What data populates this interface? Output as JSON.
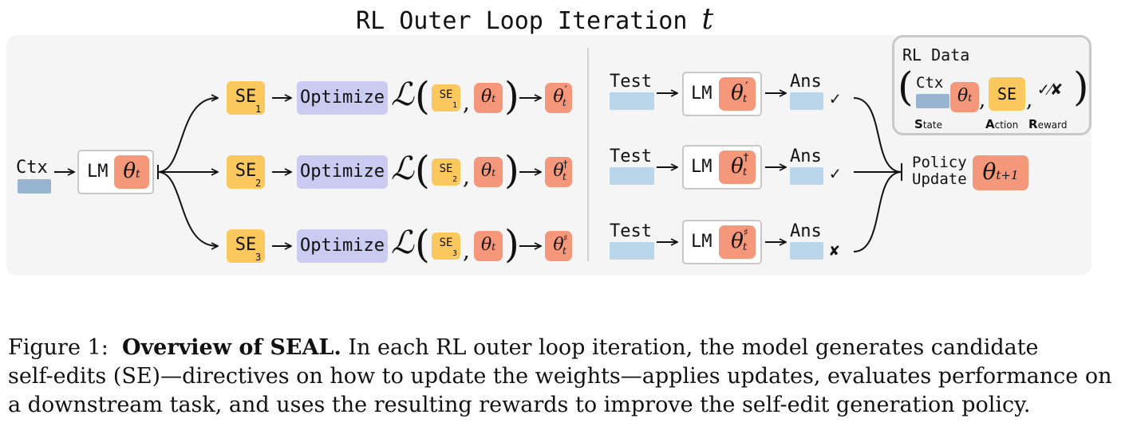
{
  "title": {
    "text": "RL Outer Loop Iteration",
    "var": "t"
  },
  "context": {
    "label": "Ctx"
  },
  "model": {
    "label": "LM",
    "param": "θ",
    "param_sub": "t"
  },
  "branches": [
    {
      "se_label": "SE",
      "se_sub": "1",
      "optimize": "Optimize",
      "theta_mark": "′",
      "result": "✓"
    },
    {
      "se_label": "SE",
      "se_sub": "2",
      "optimize": "Optimize",
      "theta_mark": "†",
      "result": "✓"
    },
    {
      "se_label": "SE",
      "se_sub": "3",
      "optimize": "Optimize",
      "theta_mark": "♯",
      "result": "✘"
    }
  ],
  "loss_symbol": "ℒ",
  "eval": {
    "test_label": "Test",
    "ans_label": "Ans"
  },
  "policy": {
    "line1": "Policy",
    "line2": "Update",
    "theta_sub": "t+1"
  },
  "rl_data": {
    "title": "RL Data",
    "ctx": "Ctx",
    "se": "SE",
    "reward": "✓⁄✘",
    "state_cap": "S",
    "state_rest": "tate",
    "action_cap": "A",
    "action_rest": "ction",
    "reward_cap": "R",
    "reward_rest": "eward"
  },
  "caption": {
    "prefix": "Figure 1:",
    "bold": "Overview of SEAL.",
    "line1": "In each RL outer loop iteration, the model generates candidate",
    "line2": "self-edits (SE)—directives on how to update the weights—applies updates, evaluates performance on",
    "line3": "a downstream task, and uses the resulting rewards to improve the self-edit generation policy."
  }
}
